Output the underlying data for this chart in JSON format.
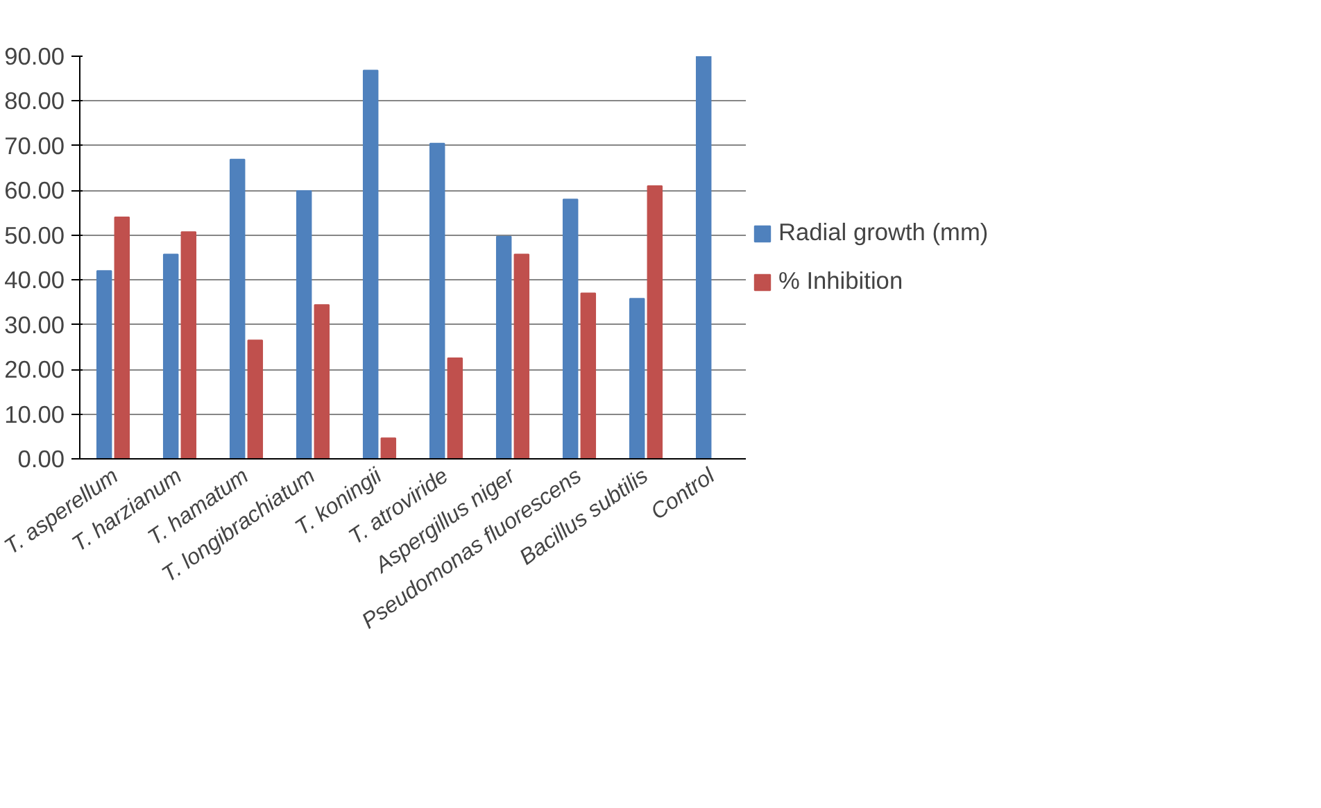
{
  "chart_data": {
    "type": "bar",
    "categories": [
      "T. asperellum",
      "T. harzianum",
      "T. hamatum",
      "T. longibrachiatum",
      "T. koningii",
      "T. atroviride",
      "Aspergillus niger",
      "Pseudomonas fluorescens",
      "Bacillus subtilis",
      "Control"
    ],
    "series": [
      {
        "name": "Radial growth (mm)",
        "color": "#4f81bd",
        "values": [
          42.0,
          45.7,
          66.9,
          59.9,
          86.8,
          70.5,
          49.7,
          58.0,
          35.8,
          90.0
        ]
      },
      {
        "name": "% Inhibition",
        "color": "#c0504d",
        "values": [
          54.0,
          50.7,
          26.5,
          34.4,
          4.6,
          22.5,
          45.7,
          37.0,
          61.0,
          0.0
        ]
      }
    ],
    "ylim": [
      0,
      90
    ],
    "yticks": [
      {
        "value": 0,
        "label": "0.00"
      },
      {
        "value": 10,
        "label": "10.00"
      },
      {
        "value": 20,
        "label": "20.00"
      },
      {
        "value": 30,
        "label": "30.00"
      },
      {
        "value": 40,
        "label": "40.00"
      },
      {
        "value": 50,
        "label": "50.00"
      },
      {
        "value": 60,
        "label": "60.00"
      },
      {
        "value": 70,
        "label": "70.00"
      },
      {
        "value": 80,
        "label": "80.00"
      },
      {
        "value": 90,
        "label": "90.00"
      }
    ],
    "grid": "y",
    "legend": "right"
  }
}
